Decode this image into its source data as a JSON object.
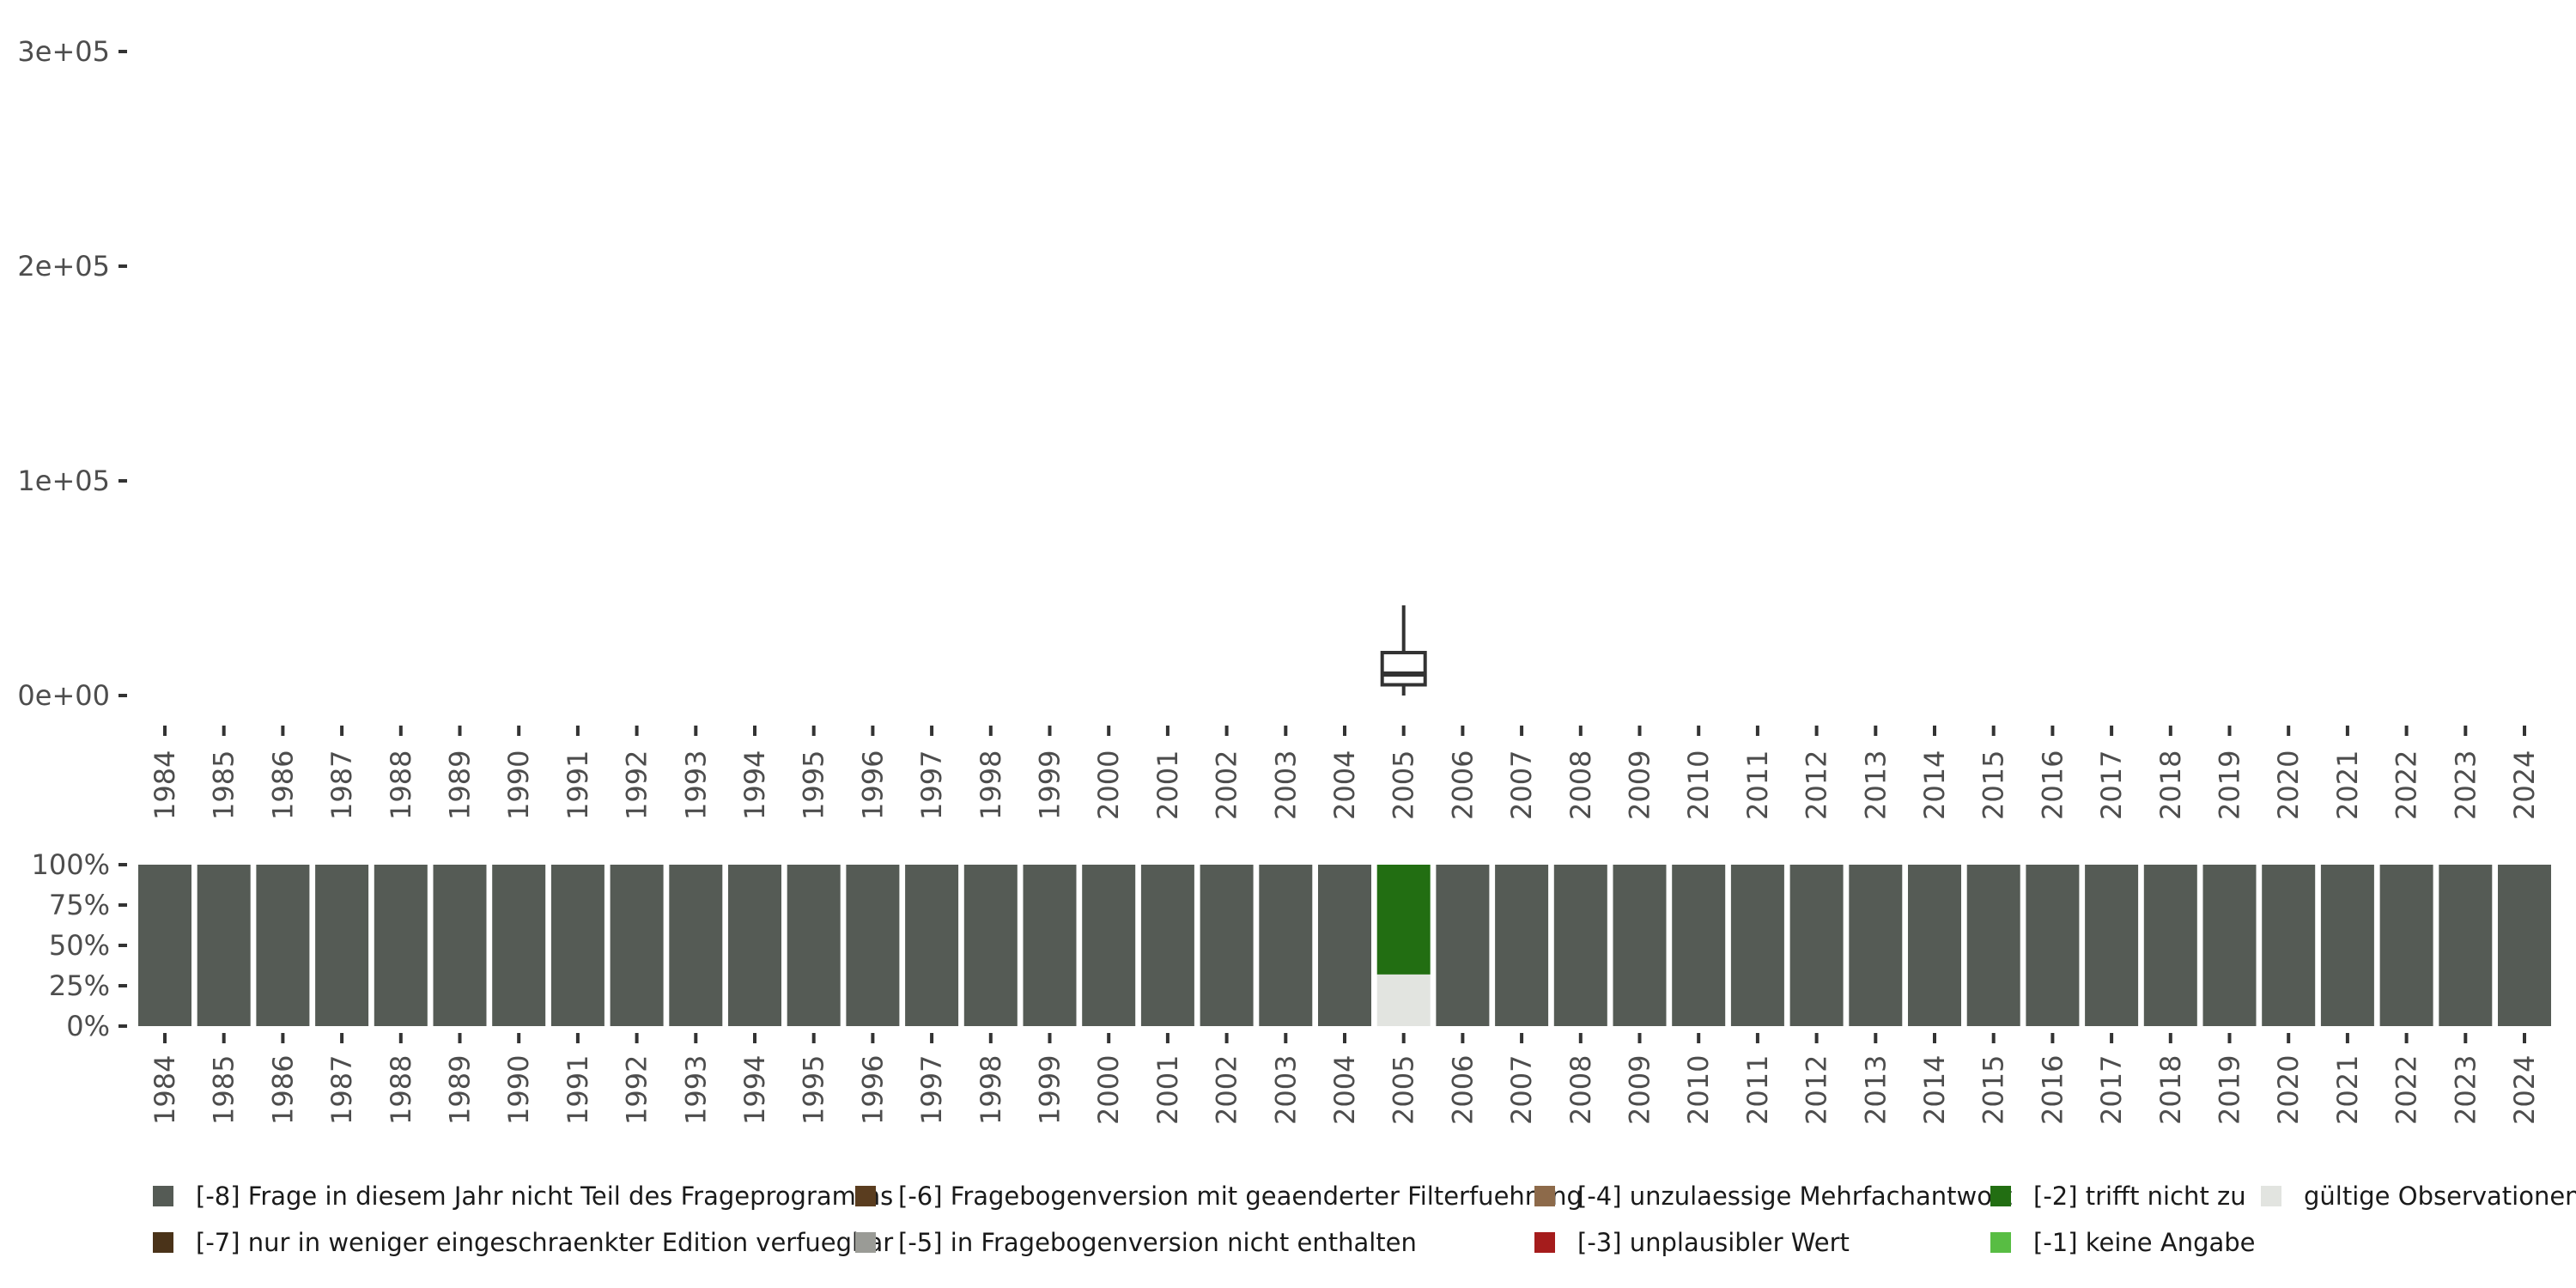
{
  "chart_data": [
    {
      "type": "box",
      "years": [
        "1984",
        "1985",
        "1986",
        "1987",
        "1988",
        "1989",
        "1990",
        "1991",
        "1992",
        "1993",
        "1994",
        "1995",
        "1996",
        "1997",
        "1998",
        "1999",
        "2000",
        "2001",
        "2002",
        "2003",
        "2004",
        "2005",
        "2006",
        "2007",
        "2008",
        "2009",
        "2010",
        "2011",
        "2012",
        "2013",
        "2014",
        "2015",
        "2016",
        "2017",
        "2018",
        "2019",
        "2020",
        "2021",
        "2022",
        "2023",
        "2024"
      ],
      "yticks": [
        "0e+00",
        "1e+05",
        "2e+05",
        "3e+05"
      ],
      "ytick_values": [
        0,
        100000,
        200000,
        300000
      ],
      "ylim": [
        0,
        300000
      ],
      "grid": false,
      "boxes": [
        {
          "x": "2005",
          "min": 0,
          "q1": 5000,
          "median": 10000,
          "q3": 20000,
          "max": 42000
        }
      ]
    },
    {
      "type": "stacked-bar",
      "years": [
        "1984",
        "1985",
        "1986",
        "1987",
        "1988",
        "1989",
        "1990",
        "1991",
        "1992",
        "1993",
        "1994",
        "1995",
        "1996",
        "1997",
        "1998",
        "1999",
        "2000",
        "2001",
        "2002",
        "2003",
        "2004",
        "2005",
        "2006",
        "2007",
        "2008",
        "2009",
        "2010",
        "2011",
        "2012",
        "2013",
        "2014",
        "2015",
        "2016",
        "2017",
        "2018",
        "2019",
        "2020",
        "2021",
        "2022",
        "2023",
        "2024"
      ],
      "yticks": [
        "0%",
        "25%",
        "50%",
        "75%",
        "100%"
      ],
      "ytick_values": [
        0,
        0.25,
        0.5,
        0.75,
        1
      ],
      "ylim": [
        0,
        1
      ],
      "default_share": {
        "cat": "m8",
        "value": 1.0
      },
      "special": {
        "2005": [
          {
            "cat": "valid",
            "value": 0.32
          },
          {
            "cat": "m2",
            "value": 0.68
          }
        ]
      }
    }
  ],
  "legend": {
    "placement": "bottom",
    "items": [
      {
        "id": "m8",
        "label": "[-8] Frage in diesem Jahr nicht Teil des Frageprogramms",
        "color": "#555b55"
      },
      {
        "id": "m7",
        "label": "[-7] nur in weniger eingeschraenkter Edition verfuegbar",
        "color": "#4a3319"
      },
      {
        "id": "m6",
        "label": "[-6] Fragebogenversion mit geaenderter Filterfuehrung",
        "color": "#5a3d1f"
      },
      {
        "id": "m5",
        "label": "[-5] in Fragebogenversion nicht enthalten",
        "color": "#9a9b96"
      },
      {
        "id": "m4",
        "label": "[-4] unzulaessige Mehrfachantwort",
        "color": "#8d6a4a"
      },
      {
        "id": "m3",
        "label": "[-3] unplausibler Wert",
        "color": "#a51c1c"
      },
      {
        "id": "m2",
        "label": "[-2] trifft nicht zu",
        "color": "#226e12"
      },
      {
        "id": "m1",
        "label": "[-1] keine Angabe",
        "color": "#58bd43"
      },
      {
        "id": "valid",
        "label": "gültige Observationen",
        "color": "#e2e4e0"
      }
    ]
  }
}
